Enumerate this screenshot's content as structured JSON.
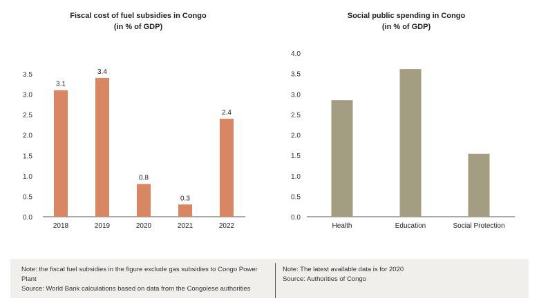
{
  "chart_data": [
    {
      "type": "bar",
      "title": "Fiscal cost of fuel subsidies in Congo",
      "subtitle": "(in % of GDP)",
      "categories": [
        "2018",
        "2019",
        "2020",
        "2021",
        "2022"
      ],
      "values": [
        3.1,
        3.4,
        0.8,
        0.3,
        2.4
      ],
      "data_labels": [
        "3.1",
        "3.4",
        "0.8",
        "0.3",
        "2.4"
      ],
      "yticks": [
        "0.0",
        "0.5",
        "1.0",
        "1.5",
        "2.0",
        "2.5",
        "3.0",
        "3.5"
      ],
      "ylim": [
        0,
        3.5
      ],
      "color": "#d98662",
      "grid": false
    },
    {
      "type": "bar",
      "title": "Social public spending in Congo",
      "subtitle": "(in % of GDP)",
      "categories": [
        "Health",
        "Education",
        "Social Protection"
      ],
      "values": [
        2.85,
        3.61,
        1.54
      ],
      "yticks": [
        "0.0",
        "0.5",
        "1.0",
        "1.5",
        "2.0",
        "2.5",
        "3.0",
        "3.5",
        "4.0"
      ],
      "ylim": [
        0,
        4.0
      ],
      "color": "#a39e82",
      "grid": false
    }
  ],
  "footer": {
    "left": {
      "note": "Note: the fiscal fuel subsidies in the figure exclude gas subsidies to Congo Power Plant",
      "source": "Source: World Bank calculations based on data from the Congolese authorities"
    },
    "right": {
      "note": "Note: The latest available data is for 2020",
      "source": "Source: Authorities of Congo"
    }
  }
}
